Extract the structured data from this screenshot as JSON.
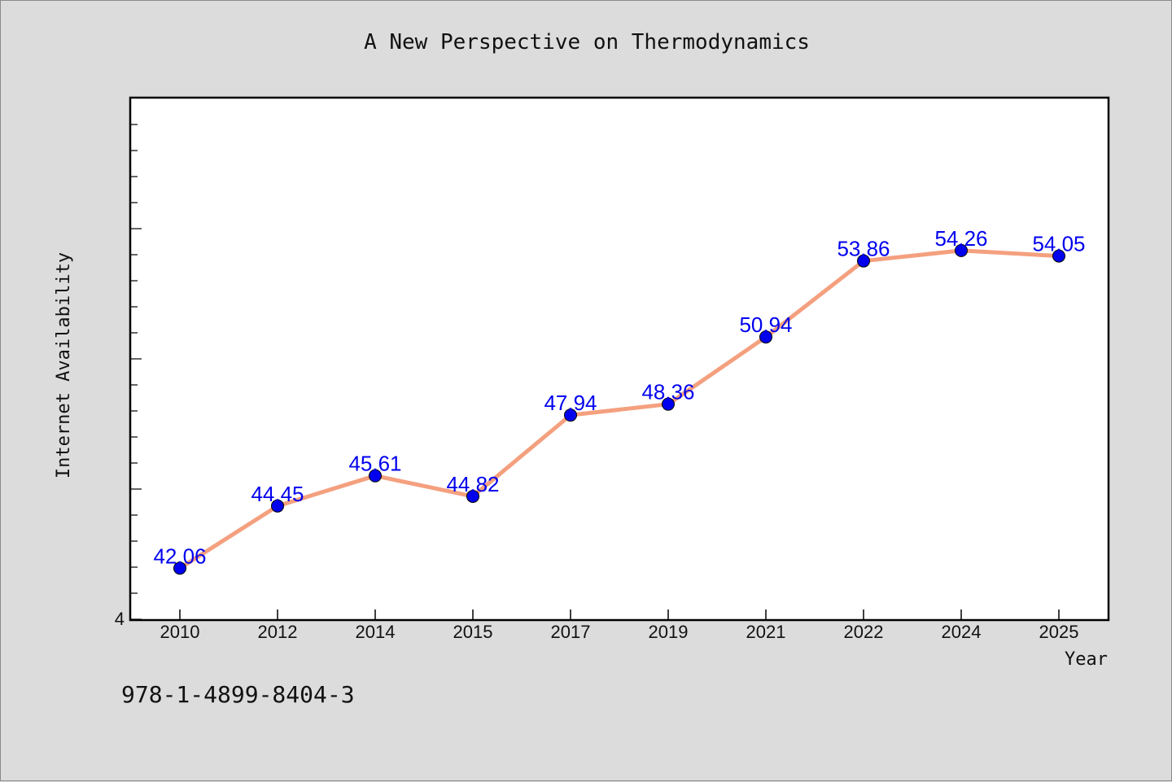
{
  "chart_data": {
    "type": "line",
    "title": "A New Perspective on Thermodynamics",
    "xlabel": "Year",
    "ylabel": "Internet Availability",
    "categories": [
      "2010",
      "2012",
      "2014",
      "2015",
      "2017",
      "2019",
      "2021",
      "2022",
      "2024",
      "2025"
    ],
    "series": [
      {
        "values": [
          42.06,
          44.45,
          45.61,
          44.82,
          47.94,
          48.36,
          50.94,
          53.86,
          54.26,
          54.05
        ]
      }
    ],
    "data_labels": [
      "42.06",
      "44.45",
      "45.61",
      "44.82",
      "47.94",
      "48.36",
      "50.94",
      "53.86",
      "54.26",
      "54.05"
    ],
    "ylim": [
      40.1,
      60.1
    ],
    "y_tick_label": "4",
    "grid": false,
    "line_color": "#f4a07f",
    "marker_color": "#0000ee",
    "label_color": "#0000ee"
  },
  "footer": {
    "isbn": "978-1-4899-8404-3"
  }
}
